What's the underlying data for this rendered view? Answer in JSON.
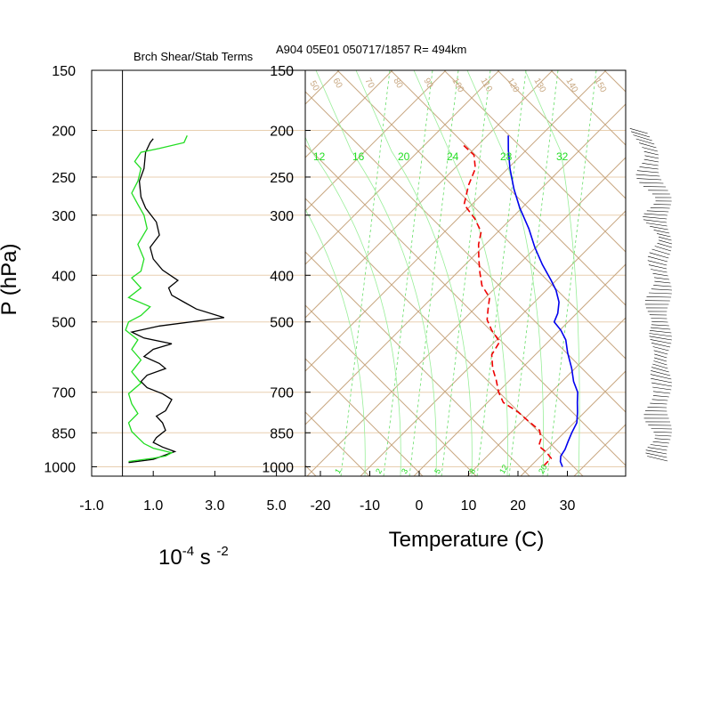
{
  "chart_data": [
    {
      "type": "line",
      "title": "Brch Shear/Stab Terms",
      "xlabel": "10-4 s -2",
      "xlabel_parts": {
        "base": "10",
        "exp1": "-4",
        "mid": " s ",
        "exp2": "-2"
      },
      "ylabel": "P (hPa)",
      "x_ticks": [
        "-1.0",
        "1.0",
        "3.0",
        "5.0"
      ],
      "xlim": [
        -1.0,
        5.0
      ],
      "y_ticks": [
        150,
        200,
        250,
        300,
        400,
        500,
        700,
        850,
        1000
      ],
      "ylim": [
        1000,
        150
      ],
      "y_scale": "log",
      "colors": {
        "series_1": "#000000",
        "series_2": "#22dd22",
        "reference_line": "#000000",
        "grid": "#e8cfb0"
      },
      "series": [
        {
          "color": "#000000",
          "points": [
            [
              1.0,
              208
            ],
            [
              0.9,
              212
            ],
            [
              0.75,
              222
            ],
            [
              0.7,
              240
            ],
            [
              0.55,
              255
            ],
            [
              0.6,
              275
            ],
            [
              0.75,
              290
            ],
            [
              1.1,
              310
            ],
            [
              1.2,
              330
            ],
            [
              0.9,
              350
            ],
            [
              1.0,
              370
            ],
            [
              1.3,
              390
            ],
            [
              1.8,
              410
            ],
            [
              1.5,
              425
            ],
            [
              1.6,
              440
            ],
            [
              2.0,
              455
            ],
            [
              2.4,
              470
            ],
            [
              3.3,
              490
            ],
            [
              1.2,
              510
            ],
            [
              0.3,
              525
            ],
            [
              0.7,
              540
            ],
            [
              1.6,
              555
            ],
            [
              1.0,
              570
            ],
            [
              0.7,
              590
            ],
            [
              1.2,
              610
            ],
            [
              1.4,
              625
            ],
            [
              0.8,
              645
            ],
            [
              0.6,
              665
            ],
            [
              0.8,
              685
            ],
            [
              1.3,
              705
            ],
            [
              1.6,
              725
            ],
            [
              1.5,
              745
            ],
            [
              1.4,
              765
            ],
            [
              1.1,
              785
            ],
            [
              1.3,
              810
            ],
            [
              1.4,
              840
            ],
            [
              1.1,
              870
            ],
            [
              1.0,
              890
            ],
            [
              1.3,
              910
            ],
            [
              1.7,
              930
            ],
            [
              1.3,
              950
            ],
            [
              1.0,
              965
            ],
            [
              0.2,
              980
            ]
          ]
        },
        {
          "color": "#22dd22",
          "points": [
            [
              2.1,
              205
            ],
            [
              2.0,
              212
            ],
            [
              1.2,
              218
            ],
            [
              0.6,
              222
            ],
            [
              0.4,
              232
            ],
            [
              0.6,
              240
            ],
            [
              0.5,
              255
            ],
            [
              0.3,
              270
            ],
            [
              0.5,
              285
            ],
            [
              0.7,
              300
            ],
            [
              0.8,
              320
            ],
            [
              0.5,
              345
            ],
            [
              0.7,
              370
            ],
            [
              0.6,
              392
            ],
            [
              0.3,
              405
            ],
            [
              0.6,
              425
            ],
            [
              0.2,
              445
            ],
            [
              0.9,
              465
            ],
            [
              0.6,
              485
            ],
            [
              0.2,
              500
            ],
            [
              0.1,
              520
            ],
            [
              0.5,
              545
            ],
            [
              0.3,
              570
            ],
            [
              0.6,
              600
            ],
            [
              0.3,
              635
            ],
            [
              0.6,
              670
            ],
            [
              0.2,
              705
            ],
            [
              0.3,
              740
            ],
            [
              0.5,
              775
            ],
            [
              0.2,
              810
            ],
            [
              0.3,
              845
            ],
            [
              0.5,
              870
            ],
            [
              0.7,
              895
            ],
            [
              1.0,
              915
            ],
            [
              1.6,
              935
            ],
            [
              1.4,
              950
            ],
            [
              1.0,
              960
            ],
            [
              0.2,
              975
            ]
          ]
        }
      ]
    },
    {
      "type": "line",
      "title": "A904 05E01 050717/1857 R= 494km",
      "xlabel": "Temperature (C)",
      "x_ticks": [
        "-20",
        "-10",
        "0",
        "10",
        "20",
        "30"
      ],
      "xlim": [
        -23,
        42
      ],
      "y_ticks": [
        150,
        200,
        250,
        300,
        400,
        500,
        700,
        850,
        1000
      ],
      "ylim": [
        1050,
        150
      ],
      "y_scale": "log",
      "skew_deg": 45,
      "colors": {
        "temperature": "#0000ee",
        "dewpoint": "#ee0000",
        "isotherms": "#c8a882",
        "adiabats": "#c8a882",
        "mixing_ratio": "#22dd22",
        "wind_barbs": "#000000"
      },
      "mixing_ratio_labels": [
        "1",
        "2",
        "3",
        "5",
        "8",
        "12",
        "20"
      ],
      "theta_e_labels": [
        "12",
        "16",
        "20",
        "24",
        "28",
        "32"
      ],
      "isotherm_labels_top": [
        "50",
        "60",
        "70",
        "80",
        "90",
        "100",
        "110",
        "120",
        "130",
        "140",
        "150"
      ],
      "series": [
        {
          "name": "Temperature",
          "color": "#0000ee",
          "style": "solid",
          "points": [
            [
              -49,
              205
            ],
            [
              -46,
              220
            ],
            [
              -42,
              240
            ],
            [
              -37,
              265
            ],
            [
              -32,
              290
            ],
            [
              -26,
              320
            ],
            [
              -21,
              350
            ],
            [
              -16,
              380
            ],
            [
              -11,
              410
            ],
            [
              -8,
              430
            ],
            [
              -5,
              455
            ],
            [
              -3,
              480
            ],
            [
              -2,
              500
            ],
            [
              1,
              520
            ],
            [
              4,
              545
            ],
            [
              7,
              580
            ],
            [
              11,
              625
            ],
            [
              14,
              665
            ],
            [
              17,
              700
            ],
            [
              19,
              735
            ],
            [
              21,
              770
            ],
            [
              23,
              810
            ],
            [
              24,
              850
            ],
            [
              25,
              885
            ],
            [
              26,
              920
            ],
            [
              26.5,
              950
            ],
            [
              27.5,
              975
            ],
            [
              29,
              1000
            ]
          ]
        },
        {
          "name": "Dewpoint",
          "color": "#ee0000",
          "style": "dashed",
          "points": [
            [
              -56,
              215
            ],
            [
              -52,
              225
            ],
            [
              -49,
              240
            ],
            [
              -47,
              260
            ],
            [
              -44,
              285
            ],
            [
              -39,
              305
            ],
            [
              -35,
              325
            ],
            [
              -33,
              345
            ],
            [
              -30,
              370
            ],
            [
              -27,
              395
            ],
            [
              -24,
              420
            ],
            [
              -20,
              445
            ],
            [
              -18,
              470
            ],
            [
              -16,
              495
            ],
            [
              -13,
              520
            ],
            [
              -9,
              550
            ],
            [
              -8,
              585
            ],
            [
              -5,
              625
            ],
            [
              -2,
              660
            ],
            [
              1,
              700
            ],
            [
              4,
              735
            ],
            [
              9,
              770
            ],
            [
              13,
              805
            ],
            [
              17,
              840
            ],
            [
              19,
              875
            ],
            [
              20,
              905
            ],
            [
              23,
              935
            ],
            [
              25,
              960
            ],
            [
              25,
              985
            ],
            [
              25,
              1000
            ]
          ]
        }
      ]
    }
  ]
}
